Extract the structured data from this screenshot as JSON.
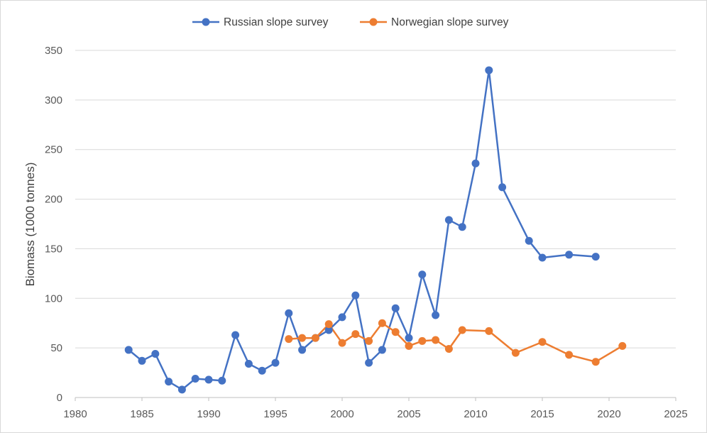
{
  "chart_data": {
    "type": "line",
    "title": "",
    "xlabel": "",
    "ylabel": "Biomass  (1000 tonnes)",
    "xlim": [
      1980,
      2025
    ],
    "ylim": [
      0,
      350
    ],
    "x_ticks": [
      "1980",
      "1985",
      "1990",
      "1995",
      "2000",
      "2005",
      "2010",
      "2015",
      "2020",
      "2025"
    ],
    "y_ticks": [
      "0",
      "50",
      "100",
      "150",
      "200",
      "250",
      "300",
      "350"
    ],
    "grid": "horizontal",
    "legend_position": "top",
    "series": [
      {
        "name": "Russian slope survey",
        "color": "#4472c4",
        "points": [
          [
            1984,
            48
          ],
          [
            1985,
            37
          ],
          [
            1986,
            44
          ],
          [
            1987,
            16
          ],
          [
            1988,
            8
          ],
          [
            1989,
            19
          ],
          [
            1990,
            18
          ],
          [
            1991,
            17
          ],
          [
            1992,
            63
          ],
          [
            1993,
            34
          ],
          [
            1994,
            27
          ],
          [
            1995,
            35
          ],
          [
            1996,
            85
          ],
          [
            1997,
            48
          ],
          [
            1998,
            60
          ],
          [
            1999,
            68
          ],
          [
            2000,
            81
          ],
          [
            2001,
            103
          ],
          [
            2002,
            35
          ],
          [
            2003,
            48
          ],
          [
            2004,
            90
          ],
          [
            2005,
            60
          ],
          [
            2006,
            124
          ],
          [
            2007,
            83
          ],
          [
            2008,
            179
          ],
          [
            2009,
            172
          ],
          [
            2010,
            236
          ],
          [
            2011,
            330
          ],
          [
            2012,
            212
          ],
          [
            2014,
            158
          ],
          [
            2015,
            141
          ],
          [
            2017,
            144
          ],
          [
            2019,
            142
          ]
        ]
      },
      {
        "name": "Norwegian slope survey",
        "color": "#ed7d31",
        "points": [
          [
            1996,
            59
          ],
          [
            1997,
            60
          ],
          [
            1998,
            60
          ],
          [
            1999,
            74
          ],
          [
            2000,
            55
          ],
          [
            2001,
            64
          ],
          [
            2002,
            57
          ],
          [
            2003,
            75
          ],
          [
            2004,
            66
          ],
          [
            2005,
            52
          ],
          [
            2006,
            57
          ],
          [
            2007,
            58
          ],
          [
            2008,
            49
          ],
          [
            2009,
            68
          ],
          [
            2011,
            67
          ],
          [
            2013,
            45
          ],
          [
            2015,
            56
          ],
          [
            2017,
            43
          ],
          [
            2019,
            36
          ],
          [
            2021,
            52
          ]
        ]
      }
    ]
  }
}
